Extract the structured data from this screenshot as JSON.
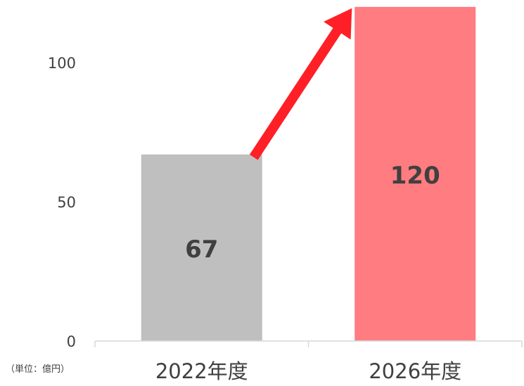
{
  "chart_data": {
    "type": "bar",
    "categories": [
      "2022年度",
      "2026年度"
    ],
    "values": [
      67,
      120
    ],
    "data_labels": [
      "67",
      "120"
    ],
    "yticks": [
      0,
      50,
      100
    ],
    "ytick_labels": [
      "0",
      "50",
      "100"
    ],
    "ylim": [
      0,
      120
    ],
    "unit_note": "（単位：億円）",
    "bar_colors": [
      "#bfbfbf",
      "#ff7c80"
    ],
    "arrow_color": "#ff1f26",
    "axis_color": "#d9d9d9",
    "text_color": "#404040",
    "grid": false,
    "annotation": "growth arrow from 2022年度 bar to 2026年度 bar"
  }
}
